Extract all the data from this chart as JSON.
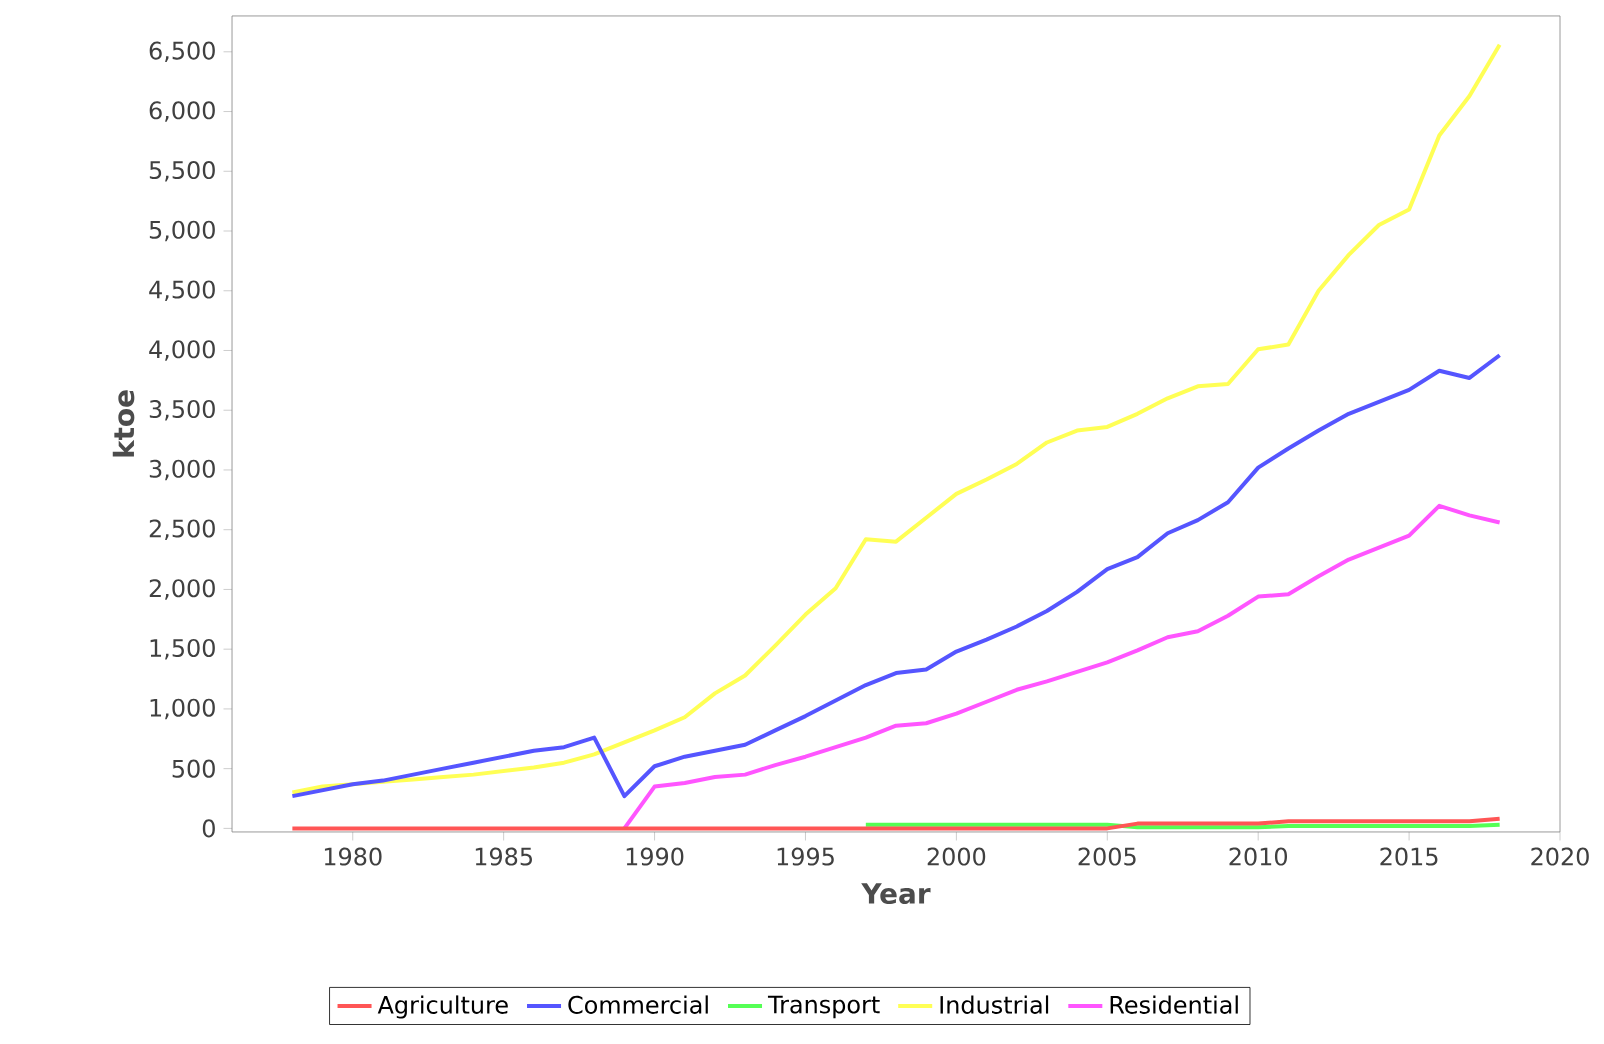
{
  "chart_data": {
    "type": "line",
    "xlabel": "Year",
    "ylabel": "ktoe",
    "x": [
      1978,
      1979,
      1980,
      1981,
      1982,
      1983,
      1984,
      1985,
      1986,
      1987,
      1988,
      1989,
      1990,
      1991,
      1992,
      1993,
      1994,
      1995,
      1996,
      1997,
      1998,
      1999,
      2000,
      2001,
      2002,
      2003,
      2004,
      2005,
      2006,
      2007,
      2008,
      2009,
      2010,
      2011,
      2012,
      2013,
      2014,
      2015,
      2016,
      2017,
      2018
    ],
    "series": [
      {
        "name": "Agriculture",
        "color": "#ff5555",
        "values": [
          0,
          0,
          0,
          0,
          0,
          0,
          0,
          0,
          0,
          0,
          0,
          0,
          0,
          0,
          0,
          0,
          0,
          0,
          0,
          0,
          0,
          0,
          0,
          0,
          0,
          0,
          0,
          0,
          40,
          40,
          40,
          40,
          40,
          60,
          60,
          60,
          60,
          60,
          60,
          60,
          80
        ]
      },
      {
        "name": "Commercial",
        "color": "#5555ff",
        "values": [
          270,
          320,
          370,
          400,
          450,
          500,
          550,
          600,
          650,
          680,
          760,
          270,
          520,
          600,
          650,
          700,
          820,
          940,
          1070,
          1200,
          1300,
          1330,
          1480,
          1580,
          1690,
          1820,
          1980,
          2170,
          2270,
          2470,
          2580,
          2730,
          3020,
          3180,
          3330,
          3470,
          3570,
          3670,
          3830,
          3770,
          3960
        ]
      },
      {
        "name": "Transport",
        "color": "#55ff55",
        "values": [
          null,
          null,
          null,
          null,
          null,
          null,
          null,
          null,
          null,
          null,
          null,
          null,
          null,
          null,
          null,
          null,
          null,
          null,
          null,
          30,
          30,
          30,
          30,
          30,
          30,
          30,
          30,
          30,
          10,
          10,
          10,
          10,
          10,
          20,
          20,
          20,
          20,
          20,
          20,
          20,
          30
        ]
      },
      {
        "name": "Industrial",
        "color": "#ffff55",
        "values": [
          300,
          350,
          370,
          390,
          410,
          430,
          450,
          480,
          510,
          550,
          620,
          720,
          820,
          930,
          1130,
          1280,
          1530,
          1790,
          2010,
          2420,
          2400,
          2600,
          2800,
          2920,
          3050,
          3230,
          3330,
          3360,
          3470,
          3600,
          3700,
          3720,
          4010,
          4050,
          4500,
          4800,
          5050,
          5180,
          5800,
          6130,
          6560
        ]
      },
      {
        "name": "Residential",
        "color": "#ff55ff",
        "values": [
          null,
          null,
          null,
          null,
          null,
          null,
          null,
          null,
          null,
          null,
          null,
          0,
          350,
          380,
          430,
          450,
          530,
          600,
          680,
          760,
          860,
          880,
          960,
          1060,
          1160,
          1230,
          1310,
          1390,
          1490,
          1600,
          1650,
          1780,
          1940,
          1960,
          2110,
          2250,
          2350,
          2450,
          2700,
          2620,
          2560
        ]
      }
    ],
    "xlim": [
      1976,
      2020
    ],
    "ylim": [
      -30,
      6800
    ],
    "xticks": [
      1980,
      1985,
      1990,
      1995,
      2000,
      2005,
      2010,
      2015,
      2020
    ],
    "yticks": [
      0,
      500,
      {
        "value": 1000,
        "label": "1,000"
      },
      {
        "value": 1500,
        "label": "1,500"
      },
      {
        "value": 2000,
        "label": "2,000"
      },
      {
        "value": 2500,
        "label": "2,500"
      },
      {
        "value": 3000,
        "label": "3,000"
      },
      {
        "value": 3500,
        "label": "3,500"
      },
      {
        "value": 4000,
        "label": "4,000"
      },
      {
        "value": 4500,
        "label": "4,500"
      },
      {
        "value": 5000,
        "label": "5,000"
      },
      {
        "value": 5500,
        "label": "5,500"
      },
      {
        "value": 6000,
        "label": "6,000"
      },
      {
        "value": 6500,
        "label": "6,500"
      }
    ],
    "grid": false,
    "legend": "bottom"
  }
}
